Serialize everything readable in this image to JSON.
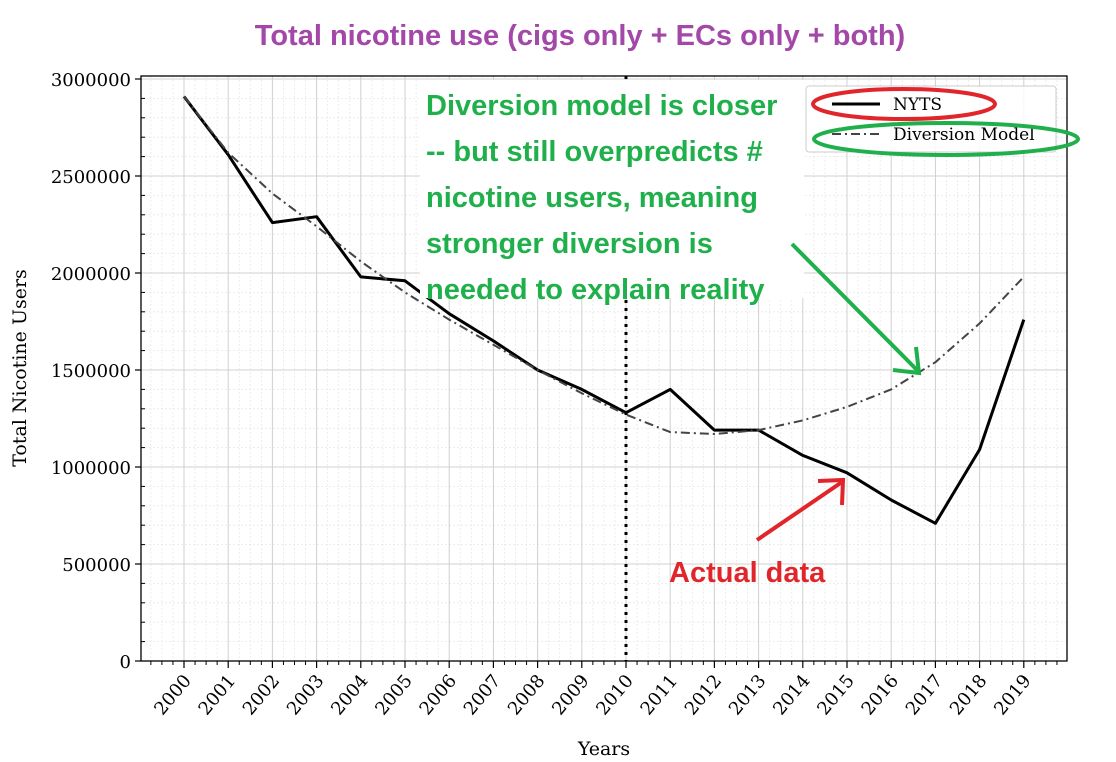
{
  "chart_data": {
    "type": "line",
    "title": "Total nicotine use (cigs only + ECs only + both)",
    "xlabel": "Years",
    "ylabel": "Total Nicotine Users",
    "x": [
      "2000",
      "2001",
      "2002",
      "2003",
      "2004",
      "2005",
      "2006",
      "2007",
      "2008",
      "2009",
      "2010",
      "2011",
      "2012",
      "2013",
      "2014",
      "2015",
      "2016",
      "2017",
      "2018",
      "2019"
    ],
    "y_ticks": [
      "0",
      "500000",
      "1000000",
      "1500000",
      "2000000",
      "2500000",
      "3000000"
    ],
    "ylim": [
      0,
      3000000
    ],
    "grid": true,
    "legend_position": "top-right",
    "series": [
      {
        "name": "NYTS",
        "style": "solid",
        "color": "#000000",
        "values": [
          2910000,
          2610000,
          2260000,
          2290000,
          1980000,
          1960000,
          1790000,
          1650000,
          1500000,
          1400000,
          1280000,
          1400000,
          1190000,
          1190000,
          1060000,
          970000,
          830000,
          710000,
          1090000,
          1760000
        ]
      },
      {
        "name": "Diversion Model",
        "style": "dash-dot",
        "color": "#444444",
        "values": [
          2910000,
          2620000,
          2410000,
          2240000,
          2060000,
          1900000,
          1760000,
          1630000,
          1500000,
          1380000,
          1270000,
          1180000,
          1170000,
          1190000,
          1240000,
          1310000,
          1400000,
          1540000,
          1740000,
          1980000
        ]
      }
    ],
    "vertical_marker": {
      "x": "2010",
      "style": "dotted"
    },
    "annotations": {
      "green_text": [
        "Diversion model is closer",
        "-- but still overpredicts #",
        "nicotine users, meaning",
        "stronger diversion is",
        "needed to explain reality"
      ],
      "red_text": "Actual data"
    },
    "colors": {
      "title": "#a347a8",
      "green_annotation": "#20b04b",
      "red_annotation": "#e0262b",
      "grid_major": "#d0d0d0",
      "grid_minor": "#e8e8e8"
    }
  }
}
